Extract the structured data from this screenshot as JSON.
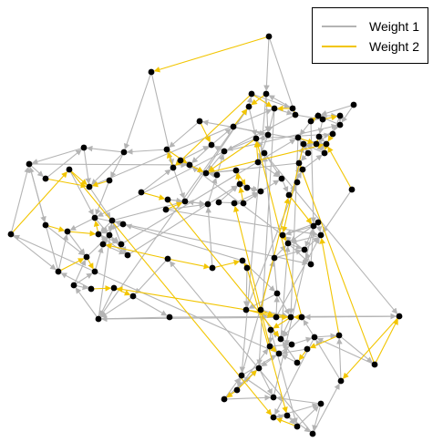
{
  "legend": {
    "items": [
      {
        "label": "Weight 1",
        "color": "#b4b4b4"
      },
      {
        "label": "Weight 2",
        "color": "#f2c500"
      }
    ]
  },
  "colors": {
    "node": "#000000",
    "weight1": "#b4b4b4",
    "weight2": "#f2c500"
  },
  "graph": {
    "node_count": 117,
    "edges_weight1_count": 160,
    "edges_weight2_count": 110
  }
}
